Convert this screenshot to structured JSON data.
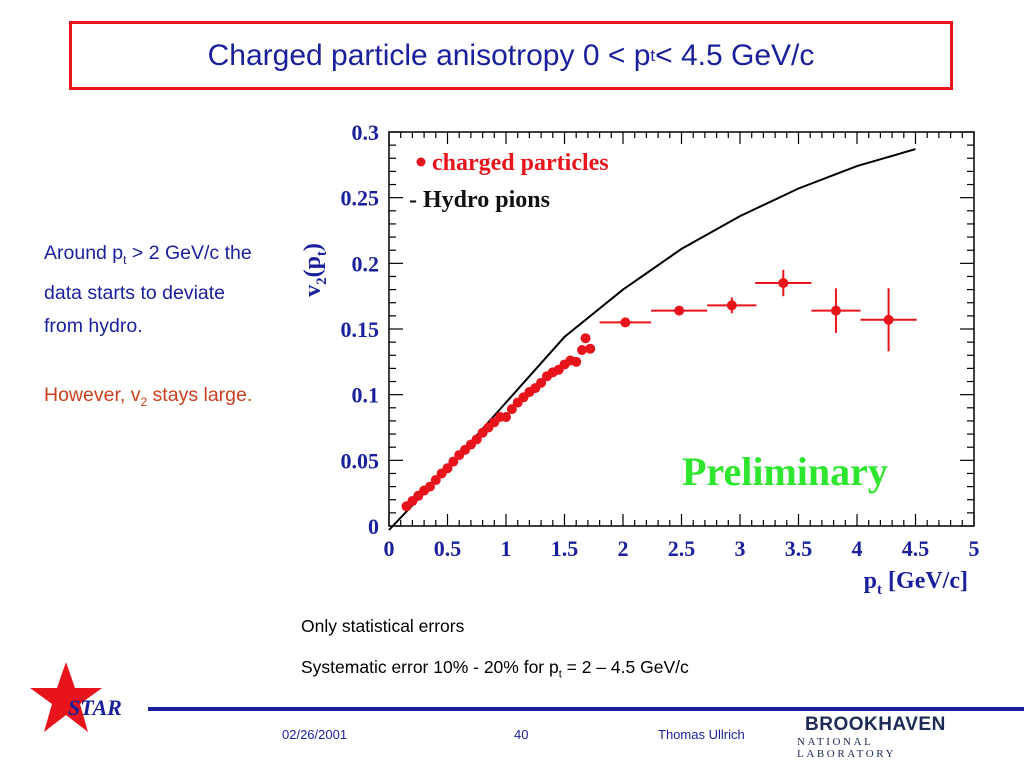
{
  "slide": {
    "title_main": "Charged particle anisotropy  0 < p",
    "title_sub": "t",
    "title_end": " < 4.5 GeV/c",
    "side_text_1": {
      "a": "Around p",
      "sub": "t",
      "b": " > 2 GeV/c the data starts to deviate from hydro."
    },
    "side_text_2": {
      "a": "However, v",
      "sub": "2",
      "b": " stays large."
    },
    "note_1": "Only statistical errors",
    "note_2": {
      "a": "Systematic error 10% - 20% for p",
      "sub": "t",
      "b": " = 2 – 4.5 GeV/c"
    },
    "footer": {
      "date": "02/26/2001",
      "page": "40",
      "author": "Thomas Ullrich"
    },
    "logos": {
      "star": "STAR",
      "bnl_name": "BROOKHAVEN",
      "bnl_sub": "NATIONAL LABORATORY"
    },
    "colors": {
      "title_border": "#e8141b",
      "text_blue": "#1a1f9c",
      "text_orange": "#c9401d",
      "data_red": "#e8141b",
      "preliminary_green": "#2ee62e"
    },
    "icons": [
      "star-icon"
    ]
  },
  "chart_data": {
    "type": "scatter",
    "xlim": [
      0,
      5
    ],
    "ylim": [
      0,
      0.3
    ],
    "x_ticks": [
      "0",
      "0.5",
      "1",
      "1.5",
      "2",
      "2.5",
      "3",
      "3.5",
      "4",
      "4.5",
      "5"
    ],
    "y_ticks": [
      "0",
      "0.05",
      "0.1",
      "0.15",
      "0.2",
      "0.25",
      "0.3"
    ],
    "xlabel": {
      "a": "p",
      "sub": "t",
      "b": " [GeV/c]"
    },
    "ylabel": {
      "a": "v",
      "sub": "2",
      "b": "(p",
      "sub2": "t",
      "c": ")"
    },
    "legend": {
      "dot_label": "charged particles",
      "line_label": "- Hydro pions",
      "placement": "top-left"
    },
    "watermark": "Preliminary",
    "series": [
      {
        "name": "charged particles",
        "kind": "points",
        "color": "#e8141b",
        "points": [
          {
            "x": 0.15,
            "y": 0.015
          },
          {
            "x": 0.2,
            "y": 0.019
          },
          {
            "x": 0.25,
            "y": 0.023
          },
          {
            "x": 0.3,
            "y": 0.027
          },
          {
            "x": 0.35,
            "y": 0.03
          },
          {
            "x": 0.4,
            "y": 0.035
          },
          {
            "x": 0.45,
            "y": 0.04
          },
          {
            "x": 0.5,
            "y": 0.044
          },
          {
            "x": 0.55,
            "y": 0.049
          },
          {
            "x": 0.6,
            "y": 0.054
          },
          {
            "x": 0.65,
            "y": 0.058
          },
          {
            "x": 0.7,
            "y": 0.062
          },
          {
            "x": 0.75,
            "y": 0.066
          },
          {
            "x": 0.8,
            "y": 0.071
          },
          {
            "x": 0.85,
            "y": 0.075
          },
          {
            "x": 0.9,
            "y": 0.079
          },
          {
            "x": 0.95,
            "y": 0.083
          },
          {
            "x": 1.0,
            "y": 0.083
          },
          {
            "x": 1.05,
            "y": 0.089
          },
          {
            "x": 1.1,
            "y": 0.094
          },
          {
            "x": 1.15,
            "y": 0.098
          },
          {
            "x": 1.2,
            "y": 0.102
          },
          {
            "x": 1.25,
            "y": 0.105
          },
          {
            "x": 1.3,
            "y": 0.109
          },
          {
            "x": 1.35,
            "y": 0.114
          },
          {
            "x": 1.4,
            "y": 0.117
          },
          {
            "x": 1.45,
            "y": 0.119
          },
          {
            "x": 1.5,
            "y": 0.123
          },
          {
            "x": 1.55,
            "y": 0.126
          },
          {
            "x": 1.6,
            "y": 0.125
          },
          {
            "x": 1.65,
            "y": 0.134
          },
          {
            "x": 1.68,
            "y": 0.143
          },
          {
            "x": 1.72,
            "y": 0.135
          },
          {
            "x": 2.02,
            "y": 0.155,
            "xerr": 0.22,
            "yerr": 0.002
          },
          {
            "x": 2.48,
            "y": 0.164,
            "xerr": 0.24,
            "yerr": 0.003
          },
          {
            "x": 2.93,
            "y": 0.168,
            "xerr": 0.21,
            "yerr": 0.006
          },
          {
            "x": 3.37,
            "y": 0.185,
            "xerr": 0.24,
            "yerr": 0.01
          },
          {
            "x": 3.82,
            "y": 0.164,
            "xerr": 0.21,
            "yerr": 0.017
          },
          {
            "x": 4.27,
            "y": 0.157,
            "xerr": 0.24,
            "yerr": 0.024
          }
        ]
      },
      {
        "name": "Hydro pions",
        "kind": "line",
        "color": "#000000",
        "points": [
          {
            "x": 0.0,
            "y": -0.005
          },
          {
            "x": 0.5,
            "y": 0.044
          },
          {
            "x": 1.0,
            "y": 0.094
          },
          {
            "x": 1.5,
            "y": 0.144
          },
          {
            "x": 2.0,
            "y": 0.18
          },
          {
            "x": 2.5,
            "y": 0.211
          },
          {
            "x": 3.0,
            "y": 0.236
          },
          {
            "x": 3.5,
            "y": 0.257
          },
          {
            "x": 4.0,
            "y": 0.274
          },
          {
            "x": 4.5,
            "y": 0.287
          }
        ]
      }
    ]
  }
}
